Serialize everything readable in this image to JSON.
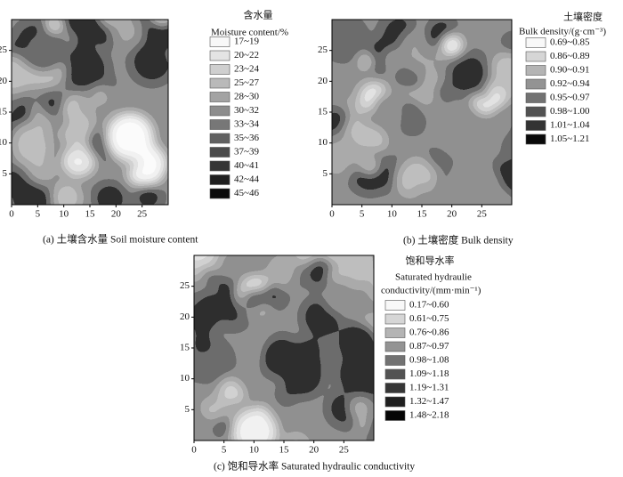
{
  "chart_data": [
    {
      "type": "contour",
      "caption": "(a) 土壤含水量 Soil moisture content",
      "legend_title": [
        "含水量",
        "Moisture content/%"
      ],
      "xlim": [
        0,
        30
      ],
      "ylim": [
        0,
        30
      ],
      "xticks": [
        0,
        5,
        10,
        15,
        20,
        25
      ],
      "yticks": [
        5,
        10,
        15,
        20,
        25
      ],
      "levels": [
        {
          "label": "17~19",
          "color": "#f8f8f8"
        },
        {
          "label": "20~22",
          "color": "#e4e4e4"
        },
        {
          "label": "23~24",
          "color": "#cfcfcf"
        },
        {
          "label": "25~27",
          "color": "#b9b9b9"
        },
        {
          "label": "28~30",
          "color": "#a3a3a3"
        },
        {
          "label": "30~32",
          "color": "#8d8d8d"
        },
        {
          "label": "33~34",
          "color": "#777777"
        },
        {
          "label": "35~36",
          "color": "#616161"
        },
        {
          "label": "37~39",
          "color": "#4b4b4b"
        },
        {
          "label": "40~41",
          "color": "#353535"
        },
        {
          "label": "42~44",
          "color": "#1f1f1f"
        },
        {
          "label": "45~46",
          "color": "#0a0a0a"
        }
      ]
    },
    {
      "type": "contour",
      "caption": "(b) 土壤密度 Bulk density",
      "legend_title": [
        "土壤密度",
        "Bulk density/(g·cm⁻³)"
      ],
      "xlim": [
        0,
        30
      ],
      "ylim": [
        0,
        30
      ],
      "xticks": [
        0,
        5,
        10,
        15,
        20,
        25
      ],
      "yticks": [
        5,
        10,
        15,
        20,
        25
      ],
      "levels": [
        {
          "label": "0.69~0.85",
          "color": "#f8f8f8"
        },
        {
          "label": "0.86~0.89",
          "color": "#d6d6d6"
        },
        {
          "label": "0.90~0.91",
          "color": "#b4b4b4"
        },
        {
          "label": "0.92~0.94",
          "color": "#939393"
        },
        {
          "label": "0.95~0.97",
          "color": "#727272"
        },
        {
          "label": "0.98~1.00",
          "color": "#525252"
        },
        {
          "label": "1.01~1.04",
          "color": "#333333"
        },
        {
          "label": "1.05~1.21",
          "color": "#0a0a0a"
        }
      ]
    },
    {
      "type": "contour",
      "caption": "(c) 饱和导水率 Saturated hydraulic conductivity",
      "legend_title": [
        "饱和导水率",
        "Saturated hydraulie",
        "conductivity/(mm·min⁻¹)"
      ],
      "xlim": [
        0,
        30
      ],
      "ylim": [
        0,
        30
      ],
      "xticks": [
        0,
        5,
        10,
        15,
        20,
        25
      ],
      "yticks": [
        5,
        10,
        15,
        20,
        25
      ],
      "levels": [
        {
          "label": "0.17~0.60",
          "color": "#f8f8f8"
        },
        {
          "label": "0.61~0.75",
          "color": "#d6d6d6"
        },
        {
          "label": "0.76~0.86",
          "color": "#b4b4b4"
        },
        {
          "label": "0.87~0.97",
          "color": "#939393"
        },
        {
          "label": "0.98~1.08",
          "color": "#727272"
        },
        {
          "label": "1.09~1.18",
          "color": "#535353"
        },
        {
          "label": "1.19~1.31",
          "color": "#363636"
        },
        {
          "label": "1.32~1.47",
          "color": "#1f1f1f"
        },
        {
          "label": "1.48~2.18",
          "color": "#050505"
        }
      ]
    }
  ]
}
